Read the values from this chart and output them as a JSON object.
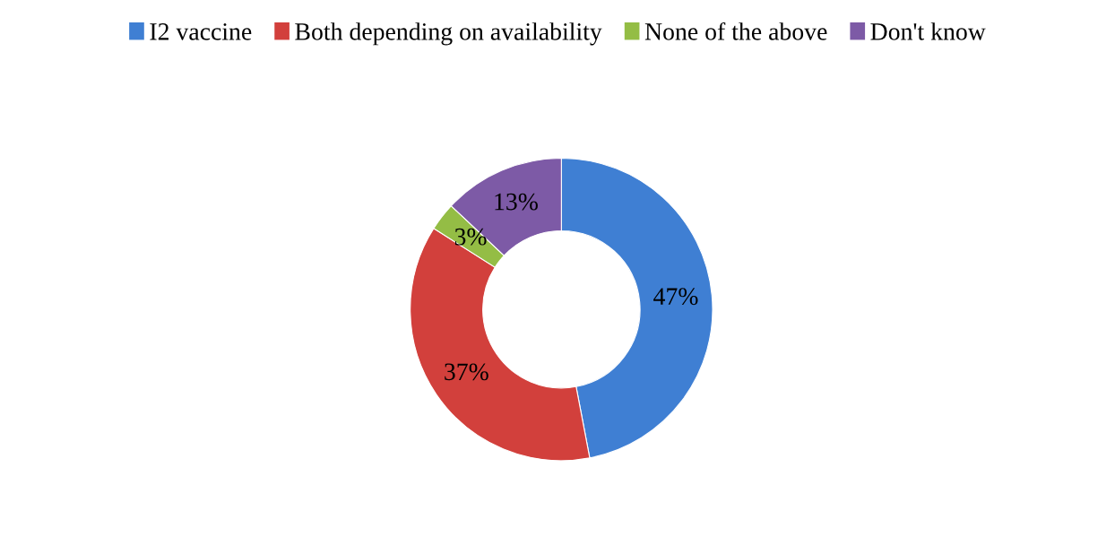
{
  "chart_data": {
    "type": "donut",
    "categories": [
      "I2 vaccine",
      "Both depending on availability",
      "None of the above",
      "Don't know"
    ],
    "values": [
      47,
      37,
      3,
      13
    ],
    "colors": [
      "#3f7fd3",
      "#d2403c",
      "#94bd45",
      "#7d5aa6"
    ],
    "value_labels": [
      "47%",
      "37%",
      "3%",
      "13%"
    ],
    "legend": "top"
  }
}
